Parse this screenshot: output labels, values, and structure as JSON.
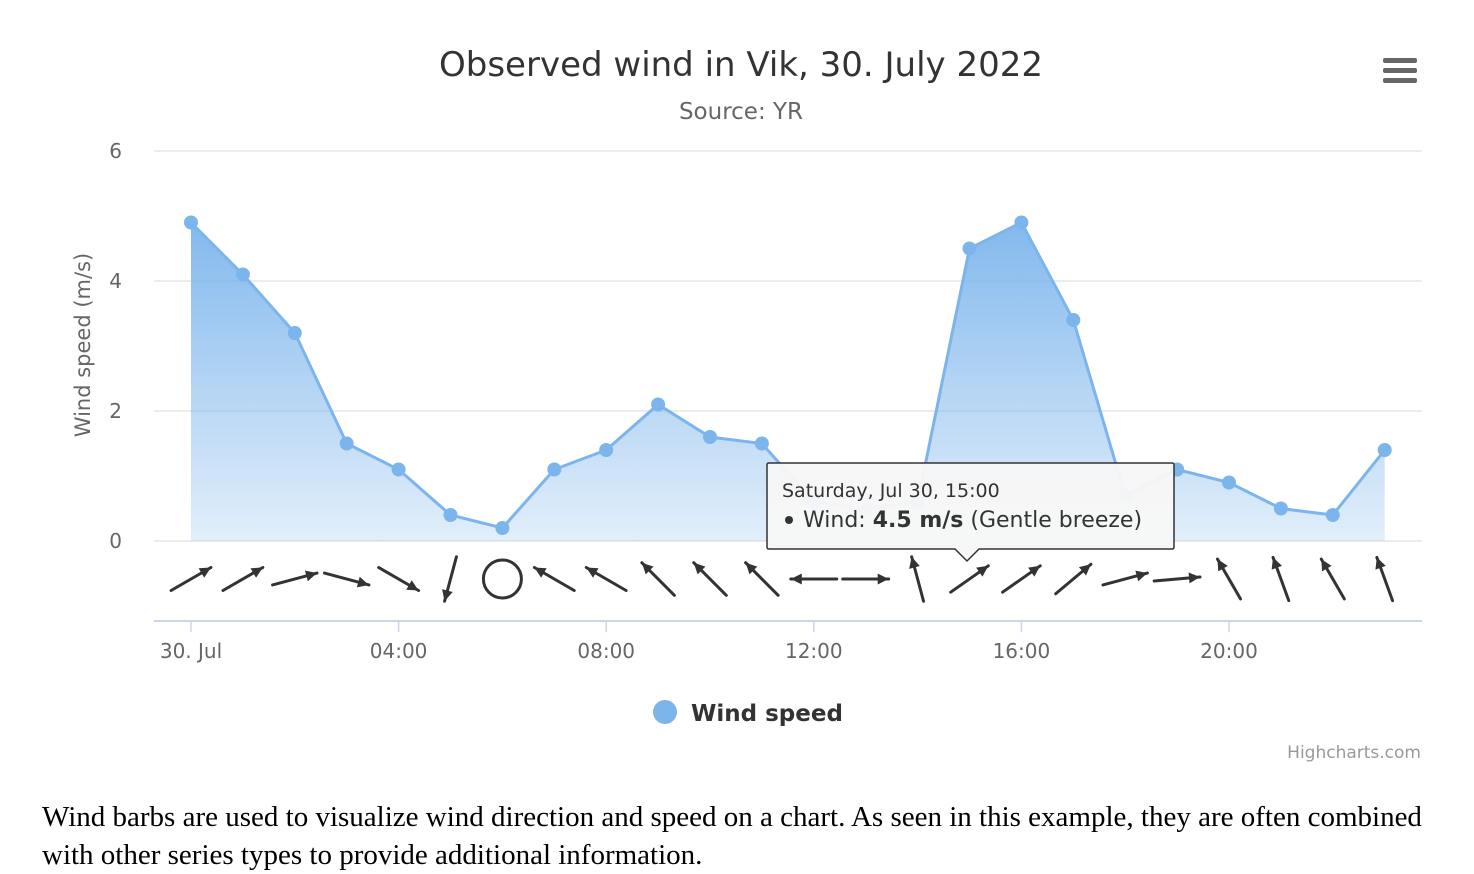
{
  "chart_data": {
    "type": "area",
    "title": "Observed wind in Vik, 30. July 2022",
    "subtitle": "Source: YR",
    "ylabel": "Wind speed (m/s)",
    "ylim": [
      0,
      6
    ],
    "yticks": [
      "0",
      "2",
      "4",
      "6"
    ],
    "xticks": [
      "30. Jul",
      "04:00",
      "08:00",
      "12:00",
      "16:00",
      "20:00"
    ],
    "x": [
      "00:00",
      "01:00",
      "02:00",
      "03:00",
      "04:00",
      "05:00",
      "06:00",
      "07:00",
      "08:00",
      "09:00",
      "10:00",
      "11:00",
      "12:00",
      "13:00",
      "14:00",
      "15:00",
      "16:00",
      "17:00",
      "18:00",
      "19:00",
      "20:00",
      "21:00",
      "22:00",
      "23:00"
    ],
    "series": [
      {
        "name": "Wind speed",
        "color": "#7cb5ec",
        "values": [
          4.9,
          4.1,
          3.2,
          1.5,
          1.1,
          0.4,
          0.2,
          1.1,
          1.4,
          2.1,
          1.6,
          1.5,
          0.6,
          0.5,
          0.6,
          4.5,
          4.9,
          3.4,
          0.7,
          1.1,
          0.9,
          0.5,
          0.4,
          1.4
        ]
      }
    ],
    "wind_direction_deg": [
      240,
      240,
      255,
      285,
      300,
      15,
      null,
      120,
      120,
      135,
      135,
      135,
      90,
      270,
      165,
      235,
      235,
      230,
      255,
      265,
      150,
      160,
      150,
      160
    ],
    "grid": true,
    "legend_position": "bottom-center"
  },
  "tooltip": {
    "header": "Saturday, Jul 30, 15:00",
    "series_label": "Wind: ",
    "value": "4.5 m/s",
    "beaufort": " (Gentle breeze)"
  },
  "legend": {
    "label": "Wind speed"
  },
  "credits": "Highcharts.com",
  "menu_icon": "hamburger-menu-icon",
  "description": "Wind barbs are used to visualize wind direction and speed on a chart. As seen in this example, they are often combined with other series types to provide additional information."
}
